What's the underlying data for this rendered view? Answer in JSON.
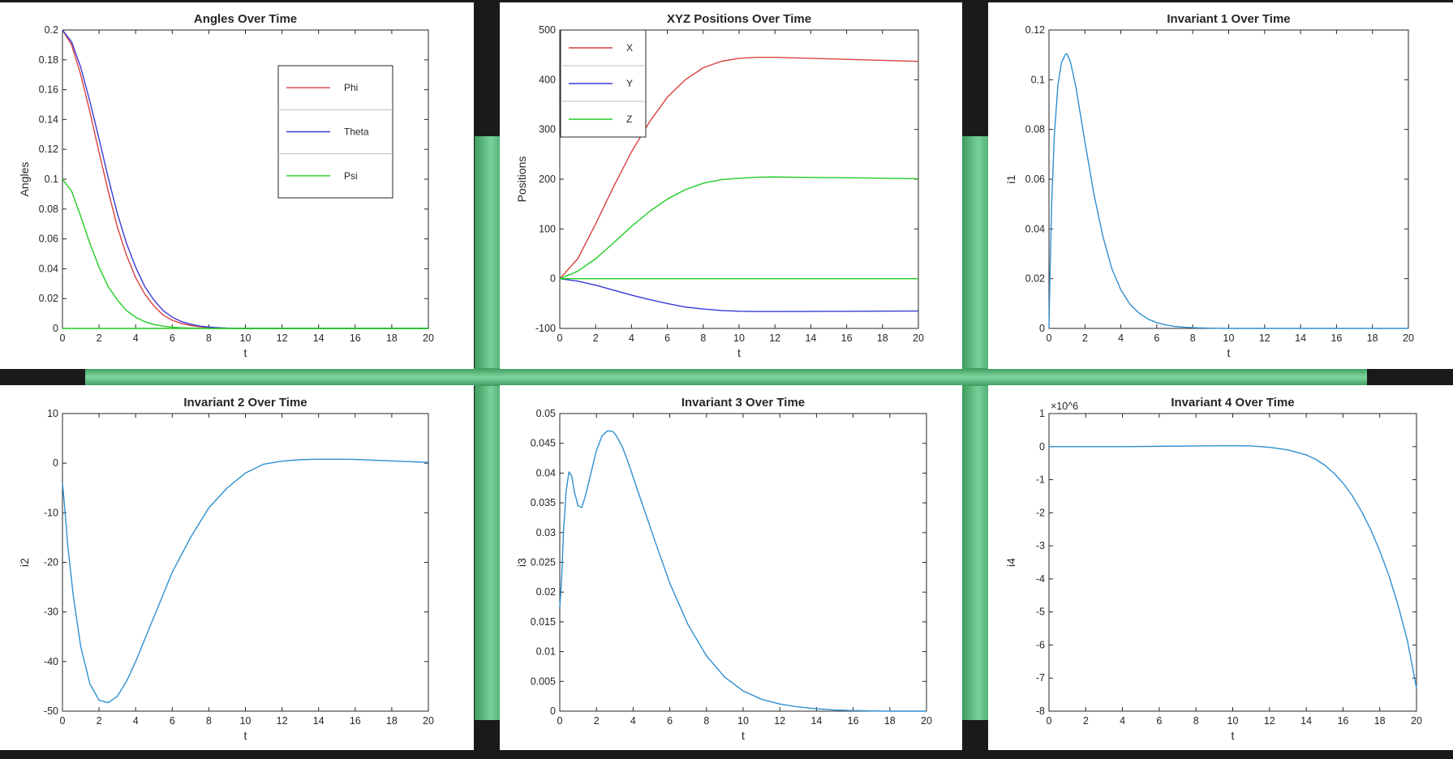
{
  "chart_data": [
    {
      "type": "line",
      "title": "Angles Over Time",
      "xlabel": "t",
      "ylabel": "Angles",
      "xlim": [
        0,
        20
      ],
      "ylim": [
        0,
        0.2
      ],
      "xticks": [
        0,
        2,
        4,
        6,
        8,
        10,
        12,
        14,
        16,
        18,
        20
      ],
      "yticks": [
        0,
        0.02,
        0.04,
        0.06,
        0.08,
        0.1,
        0.12,
        0.14,
        0.16,
        0.18,
        0.2
      ],
      "ytick_labels": [
        "0",
        "0.02",
        "0.04",
        "0.06",
        "0.08",
        "0.1",
        "0.12",
        "0.14",
        "0.16",
        "0.18",
        "0.2"
      ],
      "grid": false,
      "legend": "top-right",
      "series": [
        {
          "name": "Phi",
          "color": "#d94040",
          "x": [
            0,
            0.5,
            1,
            1.5,
            2,
            2.5,
            3,
            3.5,
            4,
            4.5,
            5,
            5.5,
            6,
            6.5,
            7,
            7.5,
            8,
            8.5,
            9,
            10,
            12,
            14,
            16,
            18,
            20
          ],
          "y": [
            0.2,
            0.19,
            0.17,
            0.145,
            0.118,
            0.092,
            0.068,
            0.049,
            0.034,
            0.023,
            0.015,
            0.009,
            0.0055,
            0.0033,
            0.002,
            0.0011,
            0.0006,
            0.0003,
            0.0001,
            0,
            0,
            0,
            0,
            0,
            0
          ]
        },
        {
          "name": "Theta",
          "color": "#3a3ad6",
          "x": [
            0,
            0.5,
            1,
            1.5,
            2,
            2.5,
            3,
            3.5,
            4,
            4.5,
            5,
            5.5,
            6,
            6.5,
            7,
            7.5,
            8,
            8.5,
            9,
            10,
            12,
            14,
            16,
            18,
            20
          ],
          "y": [
            0.2,
            0.192,
            0.175,
            0.152,
            0.127,
            0.101,
            0.077,
            0.057,
            0.041,
            0.028,
            0.019,
            0.012,
            0.0075,
            0.0046,
            0.0028,
            0.0016,
            0.0009,
            0.0005,
            0.0002,
            0,
            0,
            0,
            0,
            0,
            0
          ]
        },
        {
          "name": "Psi",
          "color": "#22cc22",
          "x": [
            0,
            0.5,
            1,
            1.5,
            2,
            2.5,
            3,
            3.5,
            4,
            4.5,
            5,
            5.5,
            6,
            6.5,
            7,
            8,
            9,
            10,
            12,
            14,
            16,
            18,
            20
          ],
          "y": [
            0.1,
            0.092,
            0.075,
            0.057,
            0.041,
            0.028,
            0.019,
            0.012,
            0.0075,
            0.0045,
            0.0027,
            0.0015,
            0.0008,
            0.0004,
            0.0002,
            0,
            0,
            0,
            0,
            0,
            0,
            0,
            0
          ]
        },
        {
          "name": "",
          "color": "#22cc22",
          "x": [
            0,
            20
          ],
          "y": [
            0,
            0
          ]
        }
      ]
    },
    {
      "type": "line",
      "title": "XYZ Positions Over Time",
      "xlabel": "t",
      "ylabel": "Positions",
      "xlim": [
        0,
        20
      ],
      "ylim": [
        -100,
        500
      ],
      "xticks": [
        0,
        2,
        4,
        6,
        8,
        10,
        12,
        14,
        16,
        18,
        20
      ],
      "yticks": [
        -100,
        0,
        100,
        200,
        300,
        400,
        500
      ],
      "ytick_labels": [
        "-100",
        "0",
        "100",
        "200",
        "300",
        "400",
        "500"
      ],
      "grid": false,
      "legend": "top-left",
      "series": [
        {
          "name": "X",
          "color": "#d94040",
          "x": [
            0,
            1,
            2,
            3,
            4,
            5,
            6,
            7,
            8,
            9,
            10,
            11,
            12,
            13,
            14,
            16,
            18,
            20
          ],
          "y": [
            0,
            40,
            110,
            185,
            255,
            315,
            365,
            400,
            424,
            437,
            443,
            445,
            445,
            444,
            443,
            441,
            439,
            437
          ]
        },
        {
          "name": "Y",
          "color": "#3a3ad6",
          "x": [
            0,
            1,
            2,
            3,
            4,
            5,
            6,
            7,
            8,
            9,
            10,
            11,
            12,
            14,
            16,
            18,
            20
          ],
          "y": [
            0,
            -5,
            -13,
            -23,
            -33,
            -42,
            -50,
            -57,
            -61,
            -64,
            -65.5,
            -66,
            -66,
            -65.8,
            -65.6,
            -65.3,
            -65
          ]
        },
        {
          "name": "Z",
          "color": "#22cc22",
          "x": [
            0,
            1,
            2,
            3,
            4,
            5,
            6,
            7,
            8,
            9,
            10,
            11,
            12,
            13,
            14,
            16,
            18,
            20
          ],
          "y": [
            0,
            15,
            40,
            72,
            105,
            135,
            160,
            179,
            192,
            199,
            202,
            204,
            204.5,
            204,
            203.5,
            203,
            202,
            201
          ]
        },
        {
          "name": "",
          "color": "#22cc22",
          "x": [
            0,
            20
          ],
          "y": [
            0,
            0
          ]
        }
      ]
    },
    {
      "type": "line",
      "title": "Invariant 1 Over Time",
      "xlabel": "t",
      "ylabel": "i1",
      "xlim": [
        0,
        20
      ],
      "ylim": [
        0,
        0.12
      ],
      "xticks": [
        0,
        2,
        4,
        6,
        8,
        10,
        12,
        14,
        16,
        18,
        20
      ],
      "yticks": [
        0,
        0.02,
        0.04,
        0.06,
        0.08,
        0.1,
        0.12
      ],
      "ytick_labels": [
        "0",
        "0.02",
        "0.04",
        "0.06",
        "0.08",
        "0.1",
        "0.12"
      ],
      "grid": false,
      "series": [
        {
          "name": "",
          "color": "#2f8fd0",
          "x": [
            0,
            0.05,
            0.15,
            0.3,
            0.5,
            0.7,
            0.9,
            1.0,
            1.2,
            1.5,
            2,
            2.5,
            3,
            3.5,
            4,
            4.5,
            5,
            5.5,
            6,
            6.5,
            7,
            7.5,
            8,
            9,
            10,
            12,
            14,
            16,
            18,
            20
          ],
          "y": [
            0,
            0.02,
            0.05,
            0.078,
            0.098,
            0.107,
            0.11,
            0.1105,
            0.107,
            0.097,
            0.075,
            0.054,
            0.037,
            0.024,
            0.0155,
            0.0098,
            0.0062,
            0.0038,
            0.0023,
            0.0014,
            0.0008,
            0.0005,
            0.0003,
            0.0001,
            0,
            0,
            0,
            0,
            0,
            0
          ]
        }
      ]
    },
    {
      "type": "line",
      "title": "Invariant 2 Over Time",
      "xlabel": "t",
      "ylabel": "i2",
      "xlim": [
        0,
        20
      ],
      "ylim": [
        -50,
        10
      ],
      "xticks": [
        0,
        2,
        4,
        6,
        8,
        10,
        12,
        14,
        16,
        18,
        20
      ],
      "yticks": [
        -50,
        -40,
        -30,
        -20,
        -10,
        0,
        10
      ],
      "ytick_labels": [
        "-50",
        "-40",
        "-30",
        "-20",
        "-10",
        "0",
        "10"
      ],
      "grid": false,
      "series": [
        {
          "name": "",
          "color": "#2f8fd0",
          "x": [
            0,
            0.1,
            0.3,
            0.6,
            1,
            1.5,
            2,
            2.5,
            3,
            3.5,
            4,
            5,
            6,
            7,
            8,
            9,
            10,
            11,
            12,
            13,
            14,
            15,
            16,
            17,
            18,
            19,
            20
          ],
          "y": [
            -4,
            -8,
            -17,
            -27,
            -37,
            -44.5,
            -47.8,
            -48.3,
            -47,
            -44,
            -40,
            -31,
            -22,
            -15,
            -9,
            -5,
            -2,
            -0.2,
            0.4,
            0.7,
            0.8,
            0.8,
            0.75,
            0.6,
            0.45,
            0.3,
            0.15
          ]
        }
      ]
    },
    {
      "type": "line",
      "title": "Invariant 3 Over Time",
      "xlabel": "t",
      "ylabel": "i3",
      "xlim": [
        0,
        20
      ],
      "ylim": [
        0,
        0.05
      ],
      "xticks": [
        0,
        2,
        4,
        6,
        8,
        10,
        12,
        14,
        16,
        18,
        20
      ],
      "yticks": [
        0,
        0.005,
        0.01,
        0.015,
        0.02,
        0.025,
        0.03,
        0.035,
        0.04,
        0.045,
        0.05
      ],
      "ytick_labels": [
        "0",
        "0.005",
        "0.01",
        "0.015",
        "0.02",
        "0.025",
        "0.03",
        "0.035",
        "0.04",
        "0.045",
        "0.05"
      ],
      "grid": false,
      "series": [
        {
          "name": "",
          "color": "#2f8fd0",
          "x": [
            0,
            0.1,
            0.2,
            0.35,
            0.5,
            0.65,
            0.8,
            1.0,
            1.2,
            1.4,
            1.7,
            2.0,
            2.3,
            2.6,
            2.9,
            3.1,
            3.4,
            3.8,
            4.2,
            4.7,
            5.2,
            6,
            7,
            8,
            9,
            10,
            11,
            12,
            13,
            14,
            15,
            16,
            18,
            20
          ],
          "y": [
            0.0175,
            0.022,
            0.03,
            0.037,
            0.0402,
            0.0395,
            0.0368,
            0.0345,
            0.0342,
            0.0362,
            0.04,
            0.0438,
            0.0462,
            0.0471,
            0.047,
            0.0462,
            0.0445,
            0.0412,
            0.0375,
            0.033,
            0.0285,
            0.0215,
            0.0145,
            0.0093,
            0.0057,
            0.0034,
            0.002,
            0.0012,
            0.0007,
            0.0004,
            0.0002,
            0.0001,
            0,
            0
          ]
        }
      ]
    },
    {
      "type": "line",
      "title": "Invariant 4 Over Time",
      "xlabel": "t",
      "ylabel": "i4",
      "exponent_label": "×10^6",
      "xlim": [
        0,
        20
      ],
      "ylim": [
        -8,
        1
      ],
      "xticks": [
        0,
        2,
        4,
        6,
        8,
        10,
        12,
        14,
        16,
        18,
        20
      ],
      "yticks": [
        -8,
        -7,
        -6,
        -5,
        -4,
        -3,
        -2,
        -1,
        0,
        1
      ],
      "ytick_labels": [
        "-8",
        "-7",
        "-6",
        "-5",
        "-4",
        "-3",
        "-2",
        "-1",
        "0",
        "1"
      ],
      "grid": false,
      "series": [
        {
          "name": "",
          "color": "#2f8fd0",
          "x": [
            0,
            2,
            4,
            6,
            8,
            10,
            11,
            12,
            13,
            14,
            14.5,
            15,
            15.5,
            16,
            16.5,
            17,
            17.5,
            18,
            18.5,
            19,
            19.5,
            20
          ],
          "y": [
            0,
            0,
            0,
            0.01,
            0.02,
            0.03,
            0.02,
            -0.02,
            -0.1,
            -0.25,
            -0.38,
            -0.56,
            -0.8,
            -1.1,
            -1.48,
            -1.95,
            -2.5,
            -3.15,
            -3.9,
            -4.8,
            -5.85,
            -7.3
          ]
        }
      ]
    }
  ]
}
